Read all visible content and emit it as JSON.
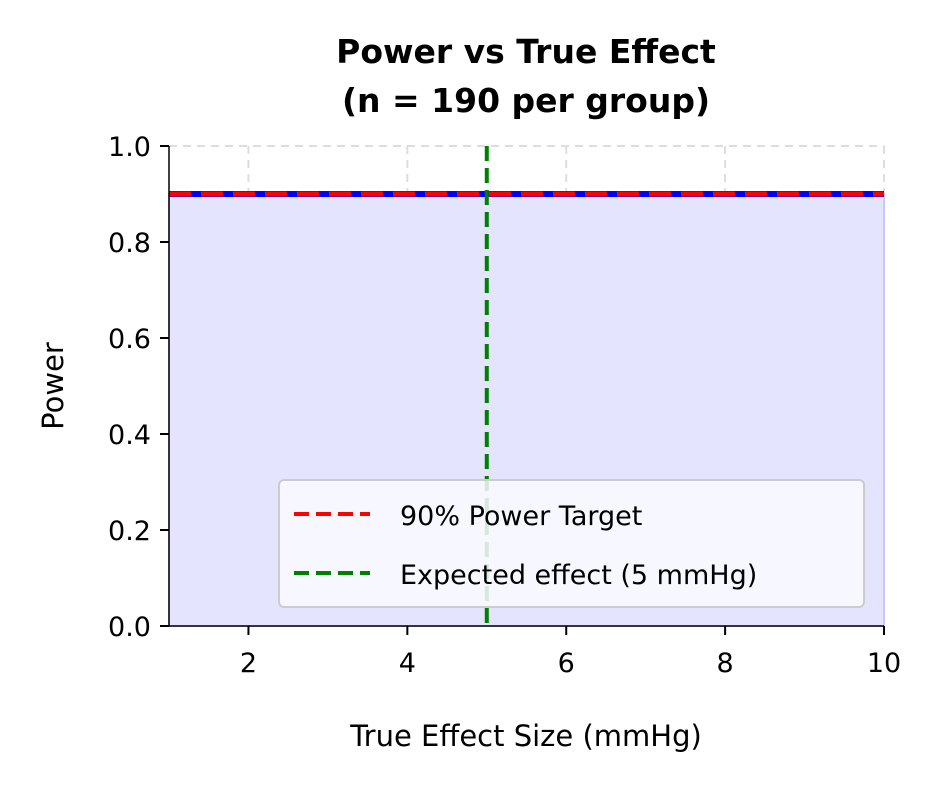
{
  "chart_data": {
    "type": "area",
    "title_line1": "Power vs True Effect",
    "title_line2": "(n = 190 per group)",
    "xlabel": "True Effect Size (mmHg)",
    "ylabel": "Power",
    "xlim": [
      1,
      10
    ],
    "ylim": [
      0,
      1.0
    ],
    "xticks": [
      2,
      4,
      6,
      8,
      10
    ],
    "xtick_labels": [
      "2",
      "4",
      "6",
      "8",
      "10"
    ],
    "yticks": [
      0,
      0.2,
      0.4,
      0.6,
      0.8,
      1.0
    ],
    "ytick_labels": [
      "0.0",
      "0.2",
      "0.4",
      "0.6",
      "0.8",
      "1.0"
    ],
    "grid": true,
    "series": [
      {
        "x": [
          1,
          2,
          3,
          4,
          5,
          6,
          7,
          8,
          9,
          10
        ],
        "y": [
          0.9,
          0.9,
          0.9,
          0.9,
          0.9,
          0.9,
          0.9,
          0.9,
          0.9,
          0.9
        ],
        "color": "#0000ff",
        "fill": "#e4e4ff"
      }
    ],
    "hlines": [
      {
        "name": "90% Power Target",
        "y": 0.9,
        "color": "#ff0000",
        "style": "dashed"
      }
    ],
    "vlines": [
      {
        "name": "Expected effect (5 mmHg)",
        "x": 5,
        "color": "#008000",
        "style": "dashed"
      }
    ],
    "legend": {
      "placement": "lower-right",
      "entries": [
        "90% Power Target",
        "Expected effect (5 mmHg)"
      ]
    }
  }
}
